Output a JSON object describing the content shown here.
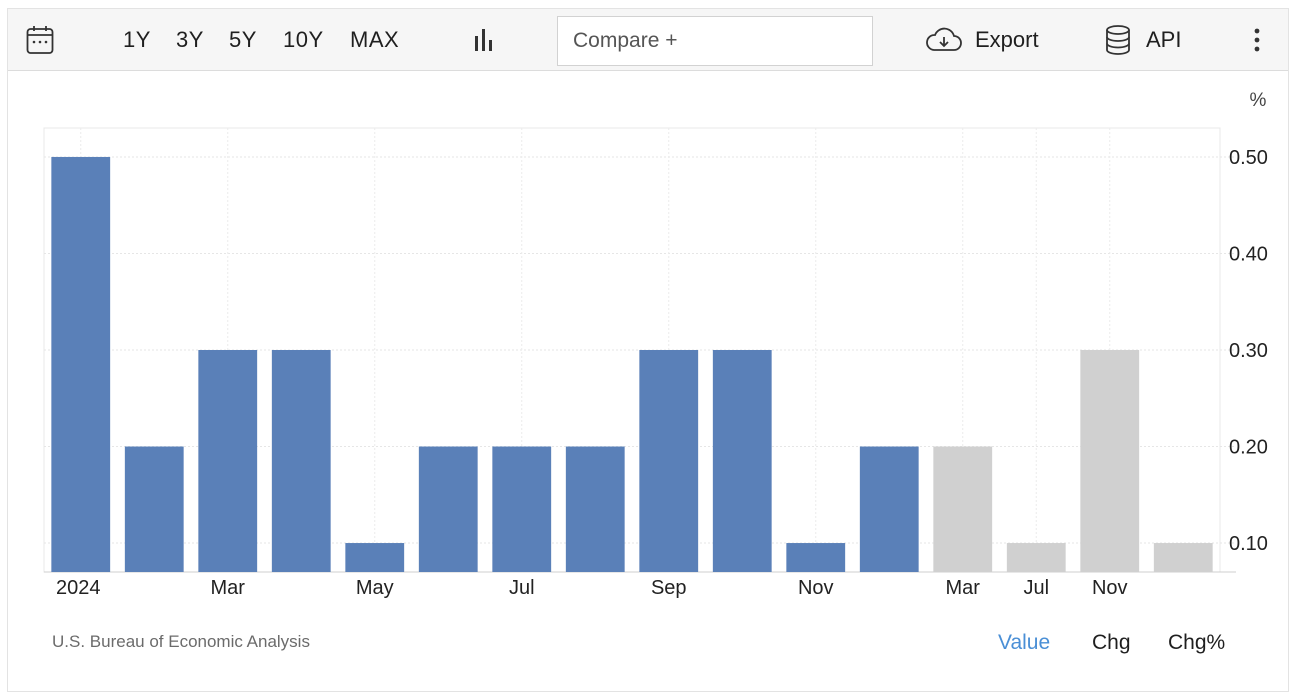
{
  "toolbar": {
    "calendar_icon": "calendar-icon",
    "ranges": [
      "1Y",
      "3Y",
      "5Y",
      "10Y",
      "MAX"
    ],
    "chart_type_icon": "bar-chart-icon",
    "compare_placeholder": "Compare +",
    "export_label": "Export",
    "export_icon": "cloud-download-icon",
    "api_label": "API",
    "api_icon": "database-icon",
    "more_icon": "vertical-dots-icon"
  },
  "footer": {
    "source": "U.S. Bureau of Economic Analysis",
    "views": [
      "Value",
      "Chg",
      "Chg%"
    ],
    "active_view": "Value"
  },
  "colors": {
    "actual": "#5a80b8",
    "forecast": "#d0d0d0",
    "active_link": "#4a8fd6"
  },
  "chart_data": {
    "type": "bar",
    "unit_label": "%",
    "categories": [
      "2024-01",
      "2024-02",
      "2024-03",
      "2024-04",
      "2024-05",
      "2024-06",
      "2024-07",
      "2024-08",
      "2024-09",
      "2024-10",
      "2024-11",
      "2024-12",
      "2025-Q1",
      "2025-Q2",
      "2025-Q3",
      "2025-Q4"
    ],
    "values": [
      0.5,
      0.2,
      0.3,
      0.3,
      0.1,
      0.2,
      0.2,
      0.2,
      0.3,
      0.3,
      0.1,
      0.2,
      0.2,
      0.1,
      0.3,
      0.1
    ],
    "forecast": [
      false,
      false,
      false,
      false,
      false,
      false,
      false,
      false,
      false,
      false,
      false,
      false,
      true,
      true,
      true,
      true
    ],
    "x_tick_labels": [
      "2024",
      "Mar",
      "May",
      "Jul",
      "Sep",
      "Nov",
      "Mar",
      "Jul",
      "Nov"
    ],
    "y_ticks": [
      0.1,
      0.2,
      0.3,
      0.4,
      0.5
    ],
    "y_tick_labels": [
      "0.10",
      "0.20",
      "0.30",
      "0.40",
      "0.50"
    ],
    "ylim": [
      0.07,
      0.53
    ],
    "y_axis_side": "right",
    "grid": true,
    "legend": false
  }
}
